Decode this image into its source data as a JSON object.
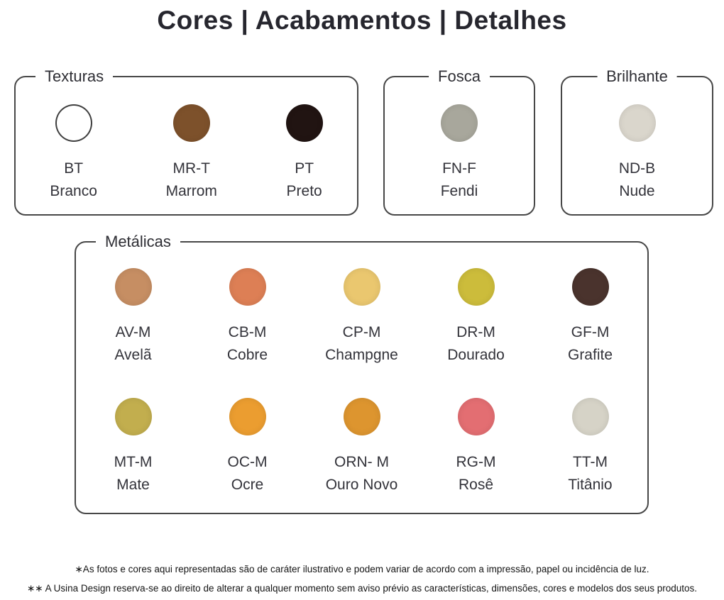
{
  "title": "Cores | Acabamentos | Detalhes",
  "groups": [
    {
      "name": "Texturas",
      "swatches": [
        {
          "code": "BT",
          "label": "Branco",
          "color": "#ffffff",
          "outline": true
        },
        {
          "code": "MR-T",
          "label": "Marrom",
          "color": "#7d512b"
        },
        {
          "code": "PT",
          "label": "Preto",
          "color": "#211412"
        }
      ]
    },
    {
      "name": "Fosca",
      "swatches": [
        {
          "code": "FN-F",
          "label": "Fendi",
          "color": "#a8a79c"
        }
      ]
    },
    {
      "name": "Brilhante",
      "swatches": [
        {
          "code": "ND-B",
          "label": "Nude",
          "color": "#dad6cc"
        }
      ]
    },
    {
      "name": "Metálicas",
      "swatches": [
        {
          "code": "AV-M",
          "label": "Avelã",
          "color": "#c68e63"
        },
        {
          "code": "CB-M",
          "label": "Cobre",
          "color": "#dd7f55"
        },
        {
          "code": "CP-M",
          "label": "Champgne",
          "color": "#eac76f"
        },
        {
          "code": "DR-M",
          "label": "Dourado",
          "color": "#ccbc3b"
        },
        {
          "code": "GF-M",
          "label": "Grafite",
          "color": "#4a332d"
        },
        {
          "code": "MT-M",
          "label": "Mate",
          "color": "#c2ae4e"
        },
        {
          "code": "OC-M",
          "label": "Ocre",
          "color": "#eb9d30"
        },
        {
          "code": "ORN- M",
          "label": "Ouro Novo",
          "color": "#dd952f"
        },
        {
          "code": "RG-M",
          "label": "Rosê",
          "color": "#e36e72"
        },
        {
          "code": "TT-M",
          "label": "Titânio",
          "color": "#d6d3c7"
        }
      ]
    }
  ],
  "footnotes": [
    "∗As fotos e cores aqui representadas são de caráter ilustrativo e podem variar de acordo com a impressão, papel ou incidência de luz.",
    "∗∗ A Usina Design reserva-se ao direito de alterar a qualquer momento sem aviso prévio as características, dimensões, cores e modelos dos seus produtos."
  ]
}
